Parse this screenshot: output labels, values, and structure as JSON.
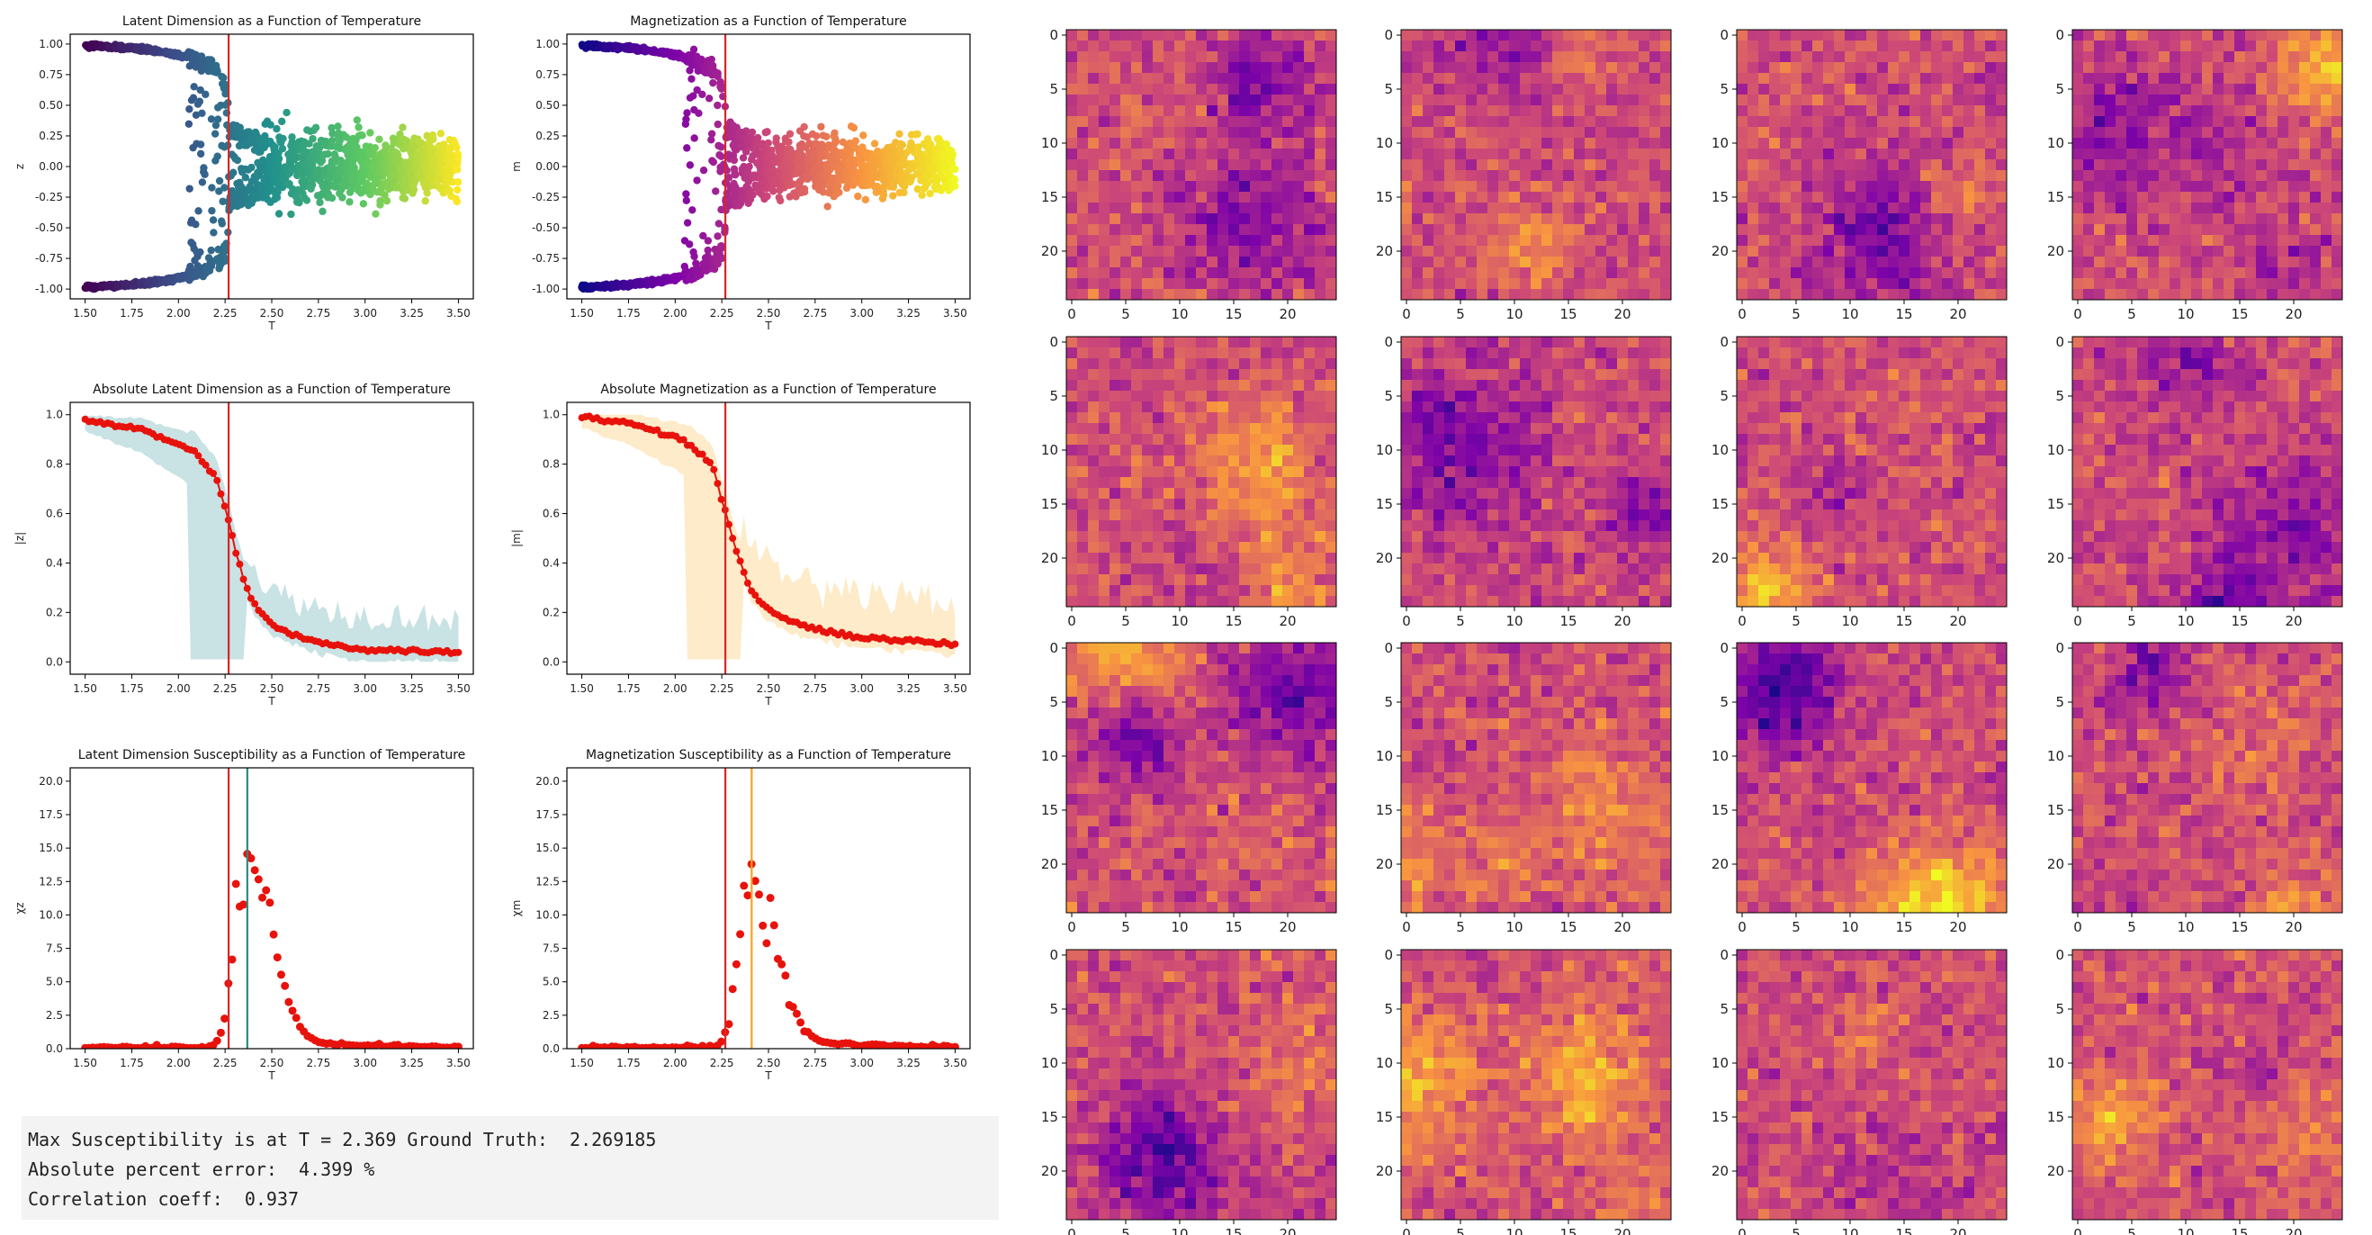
{
  "colors": {
    "critical_line": "#d62728",
    "orange_line": "#ff9f1c",
    "teal_line": "#2a8a7f",
    "teal_band": "#c9e2e3",
    "orange_band": "#fdebc9",
    "points": "#e8120c"
  },
  "charts": [
    {
      "id": "latent",
      "type": "scatter",
      "title": "Latent Dimension as a Function of Temperature",
      "xlabel": "T",
      "ylabel": "z",
      "colormap": "viridis",
      "xlim": [
        1.42,
        3.58
      ],
      "ylim": [
        -1.08,
        1.08
      ],
      "xticks": [
        "1.50",
        "1.75",
        "2.00",
        "2.25",
        "2.50",
        "2.75",
        "3.00",
        "3.25",
        "3.50"
      ],
      "yticks": [
        "-1.00",
        "-0.75",
        "-0.50",
        "-0.25",
        "0.00",
        "0.25",
        "0.50",
        "0.75",
        "1.00"
      ],
      "vlines": [
        {
          "x": 2.269,
          "color": "#d62728"
        }
      ]
    },
    {
      "id": "magnet",
      "type": "scatter",
      "title": "Magnetization as a Function of Temperature",
      "xlabel": "T",
      "ylabel": "m",
      "colormap": "plasma",
      "xlim": [
        1.42,
        3.58
      ],
      "ylim": [
        -1.08,
        1.08
      ],
      "xticks": [
        "1.50",
        "1.75",
        "2.00",
        "2.25",
        "2.50",
        "2.75",
        "3.00",
        "3.25",
        "3.50"
      ],
      "yticks": [
        "-1.00",
        "-0.75",
        "-0.50",
        "-0.25",
        "0.00",
        "0.25",
        "0.50",
        "0.75",
        "1.00"
      ],
      "vlines": [
        {
          "x": 2.269,
          "color": "#d62728"
        }
      ]
    },
    {
      "id": "abs_latent",
      "type": "line",
      "title": "Absolute Latent Dimension as a Function of Temperature",
      "xlabel": "T",
      "ylabel": "|z|",
      "band_color": "#c9e2e3",
      "xlim": [
        1.42,
        3.58
      ],
      "ylim": [
        -0.05,
        1.05
      ],
      "xticks": [
        "1.50",
        "1.75",
        "2.00",
        "2.25",
        "2.50",
        "2.75",
        "3.00",
        "3.25",
        "3.50"
      ],
      "yticks": [
        "0.0",
        "0.2",
        "0.4",
        "0.6",
        "0.8",
        "1.0"
      ],
      "vlines": [
        {
          "x": 2.269,
          "color": "#d62728"
        }
      ],
      "series_keypoints": {
        "T": [
          1.5,
          1.8,
          2.0,
          2.1,
          2.2,
          2.25,
          2.3,
          2.35,
          2.4,
          2.5,
          2.6,
          2.8,
          3.0,
          3.5
        ],
        "mean": [
          0.98,
          0.94,
          0.88,
          0.84,
          0.75,
          0.62,
          0.47,
          0.33,
          0.24,
          0.15,
          0.11,
          0.07,
          0.05,
          0.04
        ]
      }
    },
    {
      "id": "abs_magnet",
      "type": "line",
      "title": "Absolute Magnetization as a Function of Temperature",
      "xlabel": "T",
      "ylabel": "|m|",
      "band_color": "#fdebc9",
      "xlim": [
        1.42,
        3.58
      ],
      "ylim": [
        -0.05,
        1.05
      ],
      "xticks": [
        "1.50",
        "1.75",
        "2.00",
        "2.25",
        "2.50",
        "2.75",
        "3.00",
        "3.25",
        "3.50"
      ],
      "yticks": [
        "0.0",
        "0.2",
        "0.4",
        "0.6",
        "0.8",
        "1.0"
      ],
      "vlines": [
        {
          "x": 2.269,
          "color": "#d62728"
        }
      ],
      "series_keypoints": {
        "T": [
          1.5,
          1.8,
          2.0,
          2.1,
          2.2,
          2.25,
          2.3,
          2.35,
          2.4,
          2.5,
          2.6,
          2.8,
          3.0,
          3.5
        ],
        "mean": [
          0.99,
          0.96,
          0.91,
          0.87,
          0.79,
          0.66,
          0.52,
          0.4,
          0.29,
          0.21,
          0.17,
          0.12,
          0.1,
          0.07
        ]
      }
    },
    {
      "id": "sus_latent",
      "type": "scatter",
      "title": "Latent Dimension Susceptibility as a Function of Temperature",
      "xlabel": "T",
      "ylabel": "χz",
      "xlim": [
        1.42,
        3.58
      ],
      "ylim": [
        0,
        21
      ],
      "xticks": [
        "1.50",
        "1.75",
        "2.00",
        "2.25",
        "2.50",
        "2.75",
        "3.00",
        "3.25",
        "3.50"
      ],
      "yticks": [
        "0.0",
        "2.5",
        "5.0",
        "7.5",
        "10.0",
        "12.5",
        "15.0",
        "17.5",
        "20.0"
      ],
      "vlines": [
        {
          "x": 2.269,
          "color": "#d62728"
        },
        {
          "x": 2.369,
          "color": "#2a8a7f"
        }
      ],
      "peak": {
        "T": 2.369,
        "value": 15.0
      }
    },
    {
      "id": "sus_magnet",
      "type": "scatter",
      "title": "Magnetization Susceptibility as a Function of Temperature",
      "xlabel": "T",
      "ylabel": "χm",
      "xlim": [
        1.42,
        3.58
      ],
      "ylim": [
        0,
        21
      ],
      "xticks": [
        "1.50",
        "1.75",
        "2.00",
        "2.25",
        "2.50",
        "2.75",
        "3.00",
        "3.25",
        "3.50"
      ],
      "yticks": [
        "0.0",
        "2.5",
        "5.0",
        "7.5",
        "10.0",
        "12.5",
        "15.0",
        "17.5",
        "20.0"
      ],
      "vlines": [
        {
          "x": 2.269,
          "color": "#d62728"
        },
        {
          "x": 2.41,
          "color": "#ff9f1c"
        }
      ],
      "peak": {
        "T": 2.41,
        "value": 13.0
      }
    }
  ],
  "heatmaps": {
    "colormap": "plasma",
    "grid_size": 25,
    "rows": 4,
    "cols": 4,
    "xticks": [
      "0",
      "5",
      "10",
      "15",
      "20"
    ],
    "yticks": [
      "0",
      "5",
      "10",
      "15",
      "20"
    ]
  },
  "output": {
    "line1": "Max Susceptibility is at T = 2.369 Ground Truth:  2.269185",
    "line2": "Absolute percent error:  4.399 %",
    "line3": "Correlation coeff:  0.937"
  }
}
